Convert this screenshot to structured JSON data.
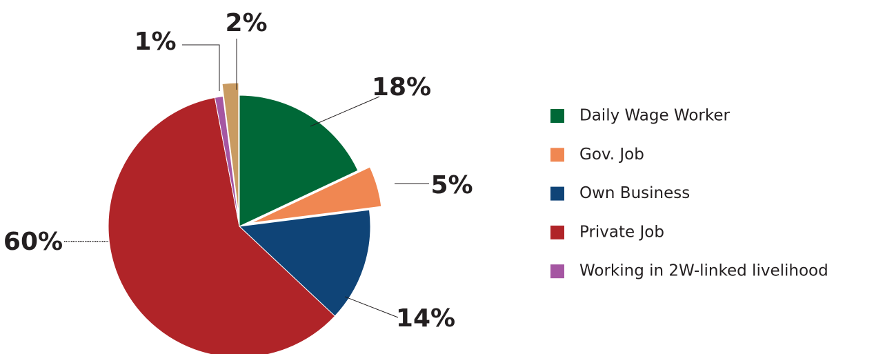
{
  "chart_data": {
    "type": "pie",
    "categories": [
      "Daily Wage Worker",
      "Gov. Job",
      "Own Business",
      "Private Job",
      "Working in 2W-linked livelihood",
      null
    ],
    "values": [
      18,
      5,
      14,
      60,
      1,
      2
    ],
    "value_labels": [
      "18%",
      "5%",
      "14%",
      "60%",
      "1%",
      "2%"
    ],
    "colors": [
      "#006837",
      "#f08752",
      "#0f4477",
      "#b02428",
      "#a556a2",
      "#c99b62"
    ],
    "exploded": [
      false,
      true,
      false,
      false,
      false,
      true
    ],
    "legend": "right"
  }
}
